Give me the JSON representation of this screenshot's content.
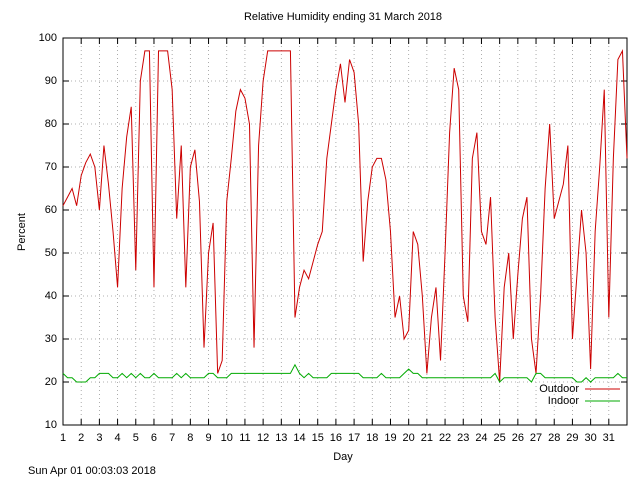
{
  "chart_data": {
    "type": "line",
    "title": "Relative Humidity ending 31 March 2018",
    "x_label": "Day",
    "y_label": "Percent",
    "footer": "Sun Apr 01 00:03:03 2018",
    "x": [
      1,
      1.25,
      1.5,
      1.75,
      2,
      2.25,
      2.5,
      2.75,
      3,
      3.25,
      3.5,
      3.75,
      4,
      4.25,
      4.5,
      4.75,
      5,
      5.25,
      5.5,
      5.75,
      6,
      6.25,
      6.5,
      6.75,
      7,
      7.25,
      7.5,
      7.75,
      8,
      8.25,
      8.5,
      8.75,
      9,
      9.25,
      9.5,
      9.75,
      10,
      10.25,
      10.5,
      10.75,
      11,
      11.25,
      11.5,
      11.75,
      12,
      12.25,
      12.5,
      12.75,
      13,
      13.25,
      13.5,
      13.75,
      14,
      14.25,
      14.5,
      14.75,
      15,
      15.25,
      15.5,
      15.75,
      16,
      16.25,
      16.5,
      16.75,
      17,
      17.25,
      17.5,
      17.75,
      18,
      18.25,
      18.5,
      18.75,
      19,
      19.25,
      19.5,
      19.75,
      20,
      20.25,
      20.5,
      20.75,
      21,
      21.25,
      21.5,
      21.75,
      22,
      22.25,
      22.5,
      22.75,
      23,
      23.25,
      23.5,
      23.75,
      24,
      24.25,
      24.5,
      24.75,
      25,
      25.25,
      25.5,
      25.75,
      26,
      26.25,
      26.5,
      26.75,
      27,
      27.25,
      27.5,
      27.75,
      28,
      28.25,
      28.5,
      28.75,
      29,
      29.25,
      29.5,
      29.75,
      30,
      30.25,
      30.5,
      30.75,
      31,
      31.25,
      31.5,
      31.75,
      32
    ],
    "series": [
      {
        "name": "Outdoor",
        "color": "#cc0000",
        "values": [
          61,
          63,
          65,
          61,
          68,
          71,
          73,
          70,
          60,
          75,
          66,
          55,
          42,
          65,
          77,
          84,
          46,
          90,
          97,
          97,
          42,
          97,
          97,
          97,
          88,
          58,
          75,
          42,
          70,
          74,
          62,
          28,
          50,
          57,
          22,
          25,
          62,
          72,
          83,
          88,
          86,
          80,
          28,
          75,
          90,
          97,
          97,
          97,
          97,
          97,
          97,
          35,
          42,
          46,
          44,
          48,
          52,
          55,
          72,
          80,
          88,
          94,
          85,
          95,
          92,
          80,
          48,
          62,
          70,
          72,
          72,
          67,
          55,
          35,
          40,
          30,
          32,
          55,
          52,
          40,
          22,
          35,
          42,
          25,
          50,
          78,
          93,
          88,
          40,
          34,
          72,
          78,
          55,
          52,
          63,
          35,
          20,
          42,
          50,
          30,
          45,
          58,
          63,
          30,
          22,
          40,
          65,
          80,
          58,
          62,
          66,
          75,
          30,
          45,
          60,
          50,
          23,
          55,
          70,
          88,
          35,
          72,
          95,
          97,
          72
        ]
      },
      {
        "name": "Indoor",
        "color": "#00aa00",
        "values": [
          22,
          21,
          21,
          20,
          20,
          20,
          21,
          21,
          22,
          22,
          22,
          21,
          21,
          22,
          21,
          22,
          21,
          22,
          21,
          21,
          22,
          21,
          21,
          21,
          21,
          22,
          21,
          22,
          21,
          21,
          21,
          21,
          22,
          22,
          21,
          21,
          21,
          22,
          22,
          22,
          22,
          22,
          22,
          22,
          22,
          22,
          22,
          22,
          22,
          22,
          22,
          24,
          22,
          21,
          22,
          21,
          21,
          21,
          21,
          22,
          22,
          22,
          22,
          22,
          22,
          22,
          21,
          21,
          21,
          21,
          22,
          21,
          21,
          21,
          21,
          22,
          23,
          22,
          22,
          21,
          21,
          21,
          21,
          21,
          21,
          21,
          21,
          21,
          21,
          21,
          21,
          21,
          21,
          21,
          21,
          22,
          20,
          21,
          21,
          21,
          21,
          21,
          21,
          20,
          22,
          22,
          21,
          21,
          21,
          21,
          21,
          21,
          21,
          20,
          20,
          21,
          20,
          21,
          21,
          21,
          21,
          21,
          22,
          21,
          21
        ]
      }
    ],
    "xlim": [
      1,
      32
    ],
    "ylim": [
      10,
      100
    ],
    "xticks": [
      1,
      2,
      3,
      4,
      5,
      6,
      7,
      8,
      9,
      10,
      11,
      12,
      13,
      14,
      15,
      16,
      17,
      18,
      19,
      20,
      21,
      22,
      23,
      24,
      25,
      26,
      27,
      28,
      29,
      30,
      31
    ],
    "yticks": [
      10,
      20,
      30,
      40,
      50,
      60,
      70,
      80,
      90,
      100
    ],
    "grid": true,
    "legend": "bottom-right"
  }
}
